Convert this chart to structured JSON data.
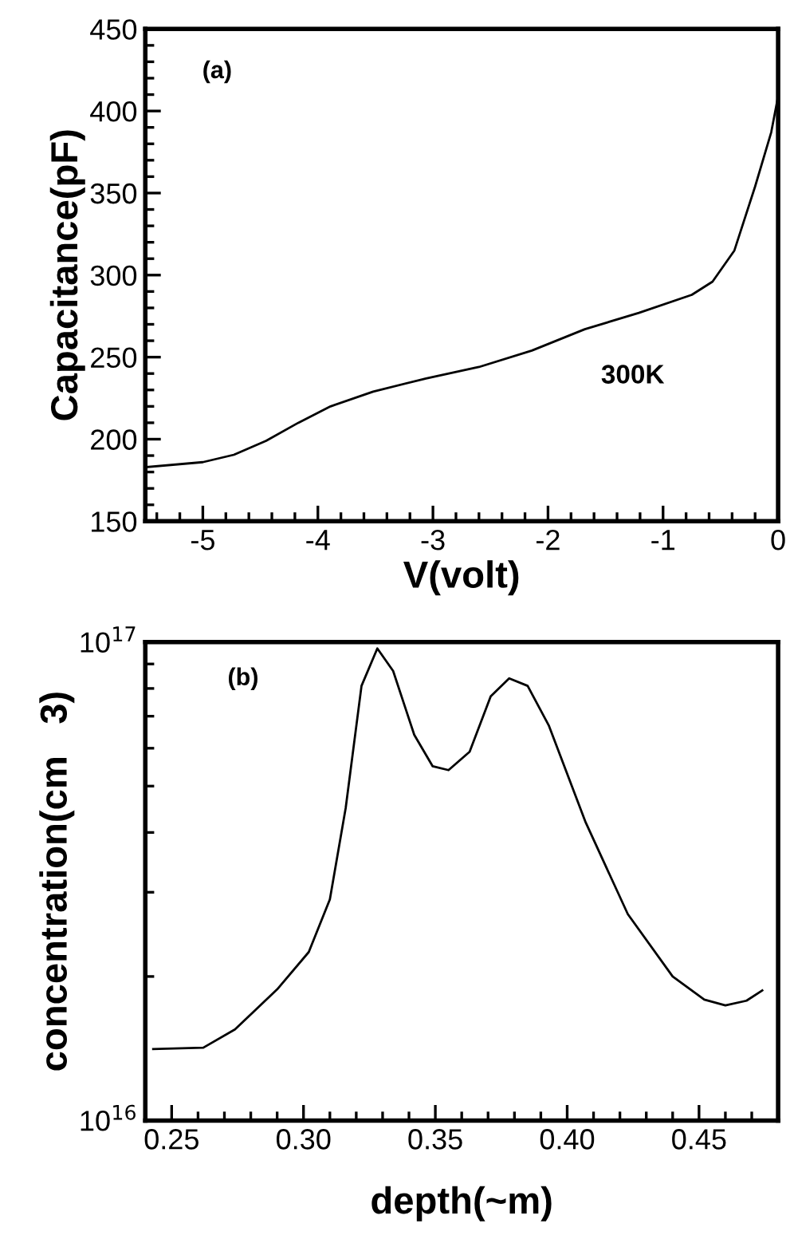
{
  "chart_data": [
    {
      "type": "line",
      "xlabel": "V(volt)",
      "ylabel": "Capacitance(pF)",
      "annotations": [
        "(a)",
        "300K"
      ],
      "grid": false,
      "legend": false,
      "marker": "none",
      "line_style": "solid",
      "xlim": [
        -5.5,
        0
      ],
      "ylim": [
        150,
        450
      ],
      "xticks": [
        {
          "value": -5.4,
          "label": null
        },
        {
          "value": -5.2,
          "label": null
        },
        -5,
        {
          "value": -4.8,
          "label": null
        },
        {
          "value": -4.6,
          "label": null
        },
        {
          "value": -4.4,
          "label": null
        },
        {
          "value": -4.2,
          "label": null
        },
        -4,
        {
          "value": -3.8,
          "label": null
        },
        {
          "value": -3.6,
          "label": null
        },
        {
          "value": -3.4,
          "label": null
        },
        {
          "value": -3.2,
          "label": null
        },
        -3,
        {
          "value": -2.8,
          "label": null
        },
        {
          "value": -2.6,
          "label": null
        },
        {
          "value": -2.4,
          "label": null
        },
        {
          "value": -2.2,
          "label": null
        },
        -2,
        {
          "value": -1.8,
          "label": null
        },
        {
          "value": -1.6,
          "label": null
        },
        {
          "value": -1.4,
          "label": null
        },
        {
          "value": -1.2,
          "label": null
        },
        -1,
        {
          "value": -0.8,
          "label": null
        },
        {
          "value": -0.6,
          "label": null
        },
        {
          "value": -0.4,
          "label": null
        },
        {
          "value": -0.2,
          "label": null
        },
        0
      ],
      "yticks": [
        150,
        {
          "value": 160,
          "label": null
        },
        {
          "value": 170,
          "label": null
        },
        {
          "value": 180,
          "label": null
        },
        {
          "value": 190,
          "label": null
        },
        200,
        {
          "value": 210,
          "label": null
        },
        {
          "value": 220,
          "label": null
        },
        {
          "value": 230,
          "label": null
        },
        {
          "value": 240,
          "label": null
        },
        250,
        {
          "value": 260,
          "label": null
        },
        {
          "value": 270,
          "label": null
        },
        {
          "value": 280,
          "label": null
        },
        {
          "value": 290,
          "label": null
        },
        300,
        {
          "value": 310,
          "label": null
        },
        {
          "value": 320,
          "label": null
        },
        {
          "value": 330,
          "label": null
        },
        {
          "value": 340,
          "label": null
        },
        350,
        {
          "value": 360,
          "label": null
        },
        {
          "value": 370,
          "label": null
        },
        {
          "value": 380,
          "label": null
        },
        {
          "value": 390,
          "label": null
        },
        400,
        {
          "value": 410,
          "label": null
        },
        {
          "value": 420,
          "label": null
        },
        {
          "value": 430,
          "label": null
        },
        {
          "value": 440,
          "label": null
        },
        450
      ],
      "series": [
        {
          "color": "#000000",
          "x": [
            -5.49,
            -5.0,
            -4.73,
            -4.45,
            -4.17,
            -3.89,
            -3.52,
            -3.06,
            -2.6,
            -2.14,
            -1.68,
            -1.21,
            -0.75,
            -0.57,
            -0.38,
            -0.2,
            -0.06,
            0
          ],
          "values": [
            183,
            186,
            190.5,
            199,
            210,
            220,
            229,
            237,
            244,
            254,
            267,
            277,
            288,
            296,
            315,
            354,
            387,
            409
          ]
        }
      ]
    },
    {
      "type": "line",
      "xlabel": "depth(~m)",
      "ylabel": "concentration(cm   3)",
      "annotations": [
        "(b)"
      ],
      "log": "y",
      "grid": false,
      "legend": false,
      "marker": "none",
      "line_style": "solid",
      "xlim": [
        0.24,
        0.48
      ],
      "ylim": [
        1e+16,
        1e+17
      ],
      "xticks": [
        {
          "value": 0.24,
          "label": null
        },
        0.25,
        {
          "value": 0.26,
          "label": null
        },
        {
          "value": 0.27,
          "label": null
        },
        {
          "value": 0.28,
          "label": null
        },
        {
          "value": 0.29,
          "label": null
        },
        {
          "value": 0.3,
          "label": "0.30"
        },
        {
          "value": 0.31,
          "label": null
        },
        {
          "value": 0.32,
          "label": null
        },
        {
          "value": 0.33,
          "label": null
        },
        {
          "value": 0.34,
          "label": null
        },
        0.35,
        {
          "value": 0.36,
          "label": null
        },
        {
          "value": 0.37,
          "label": null
        },
        {
          "value": 0.38,
          "label": null
        },
        {
          "value": 0.39,
          "label": null
        },
        {
          "value": 0.4,
          "label": "0.40"
        },
        {
          "value": 0.41,
          "label": null
        },
        {
          "value": 0.42,
          "label": null
        },
        {
          "value": 0.43,
          "label": null
        },
        {
          "value": 0.44,
          "label": null
        },
        0.45,
        {
          "value": 0.46,
          "label": null
        },
        {
          "value": 0.47,
          "label": null
        }
      ],
      "yticks": [
        {
          "value": 1e+16,
          "label": "10$^{16}$"
        },
        {
          "value": 2e+16,
          "label": null
        },
        {
          "value": 3e+16,
          "label": null
        },
        {
          "value": 4e+16,
          "label": null
        },
        {
          "value": 5e+16,
          "label": null
        },
        {
          "value": 6e+16,
          "label": null
        },
        {
          "value": 7e+16,
          "label": null
        },
        {
          "value": 8e+16,
          "label": null
        },
        {
          "value": 9e+16,
          "label": null
        },
        {
          "value": 1e+17,
          "label": "10$^{17}$"
        }
      ],
      "series": [
        {
          "color": "#000000",
          "x": [
            0.243,
            0.262,
            0.274,
            0.29,
            0.302,
            0.31,
            0.316,
            0.322,
            0.328,
            0.334,
            0.342,
            0.349,
            0.355,
            0.363,
            0.371,
            0.378,
            0.385,
            0.393,
            0.407,
            0.423,
            0.44,
            0.452,
            0.46,
            0.468,
            0.474
          ],
          "values": [
            1.41e+16,
            1.42e+16,
            1.55e+16,
            1.88e+16,
            2.25e+16,
            2.9e+16,
            4.5e+16,
            8.1e+16,
            9.7e+16,
            8.7e+16,
            6.4e+16,
            5.5e+16,
            5.4e+16,
            5.9e+16,
            7.7e+16,
            8.4e+16,
            8.1e+16,
            6.7e+16,
            4.2e+16,
            2.7e+16,
            2e+16,
            1.79e+16,
            1.74e+16,
            1.78e+16,
            1.87e+16
          ]
        }
      ]
    }
  ]
}
